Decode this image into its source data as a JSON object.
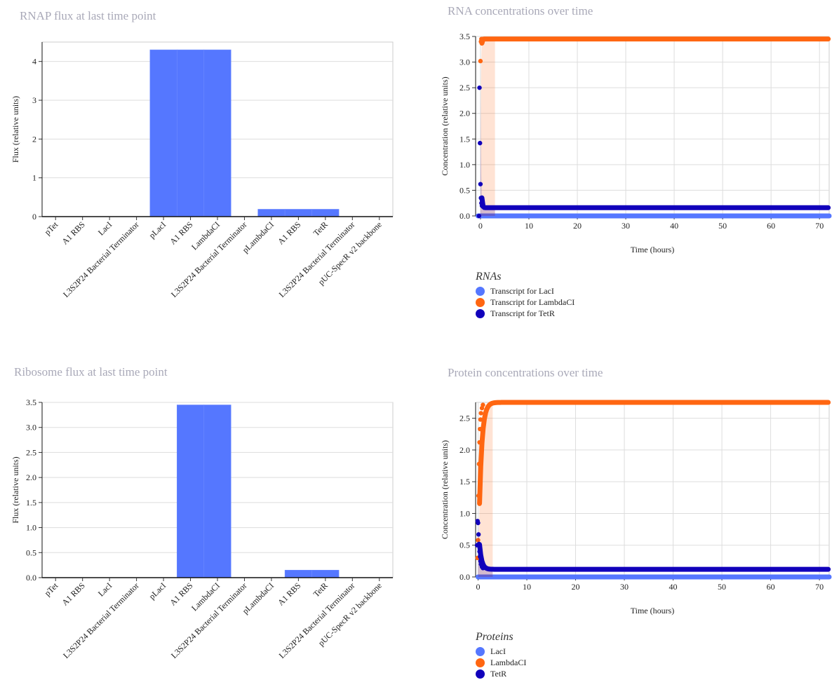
{
  "chart_data": [
    {
      "id": "rnap",
      "type": "bar",
      "title": "RNAP flux at last time point",
      "ylabel": "Flux (relative units)",
      "xlabel": "",
      "ylim": [
        0,
        4.5
      ],
      "yticks": [
        0,
        1,
        2,
        3,
        4
      ],
      "categories": [
        "pTet",
        "A1 RBS",
        "LacI",
        "L3S2P24 Bacterial Terminator",
        "pLacI",
        "A1 RBS",
        "LambdaCI",
        "L3S2P24 Bacterial Terminator",
        "pLambdaCI",
        "A1 RBS",
        "TetR",
        "L3S2P24 Bacterial Terminator",
        "pUC-SpecR v2 backbone"
      ],
      "values": [
        0,
        0,
        0,
        0,
        4.3,
        4.3,
        4.3,
        0,
        0.19,
        0.19,
        0.19,
        0,
        0
      ],
      "grid": true,
      "color": "#5577ff"
    },
    {
      "id": "ribosome",
      "type": "bar",
      "title": "Ribosome flux at last time point",
      "ylabel": "Flux (relative units)",
      "xlabel": "",
      "ylim": [
        0,
        3.5
      ],
      "yticks": [
        0.0,
        0.5,
        1.0,
        1.5,
        2.0,
        2.5,
        3.0,
        3.5
      ],
      "categories": [
        "pTet",
        "A1 RBS",
        "LacI",
        "L3S2P24 Bacterial Terminator",
        "pLacI",
        "A1 RBS",
        "LambdaCI",
        "L3S2P24 Bacterial Terminator",
        "pLambdaCI",
        "A1 RBS",
        "TetR",
        "L3S2P24 Bacterial Terminator",
        "pUC-SpecR v2 backbone"
      ],
      "values": [
        0,
        0,
        0,
        0,
        0,
        3.45,
        3.45,
        0,
        0,
        0.15,
        0.15,
        0,
        0
      ],
      "grid": true,
      "color": "#5577ff"
    },
    {
      "id": "rna",
      "type": "scatter",
      "title": "RNA concentrations over time",
      "xlabel": "Time (hours)",
      "ylabel": "Concentration (relative units)",
      "xlim": [
        -1,
        72
      ],
      "ylim": [
        0,
        3.5
      ],
      "xticks": [
        0,
        10,
        20,
        30,
        40,
        50,
        60,
        70
      ],
      "yticks": [
        0.0,
        0.5,
        1.0,
        1.5,
        2.0,
        2.5,
        3.0,
        3.5
      ],
      "grid": true,
      "legend_title": "RNAs",
      "legend_position": "bottom-left",
      "series": [
        {
          "name": "Transcript for LacI",
          "color": "#5577ff",
          "kind": "flat",
          "value": 0
        },
        {
          "name": "Transcript for LambdaCI",
          "color": "#ff6611",
          "kind": "rise",
          "start": 0,
          "end": 3.45,
          "tau": 0.08,
          "points": [
            [
              0,
              3.02
            ],
            [
              0.1,
              3.4
            ],
            [
              0.2,
              3.45
            ]
          ]
        },
        {
          "name": "Transcript for TetR",
          "color": "#1100bb",
          "kind": "spike",
          "start": 0,
          "peak": 2.5,
          "peak_t": 0,
          "end": 0.16,
          "tau": 0.12,
          "points": [
            [
              -0.3,
              0
            ],
            [
              -0.2,
              2.5
            ],
            [
              -0.1,
              1.42
            ],
            [
              0,
              0.62
            ],
            [
              0.1,
              0.35
            ],
            [
              0.2,
              0.25
            ],
            [
              0.3,
              0.2
            ]
          ]
        }
      ]
    },
    {
      "id": "protein",
      "type": "scatter",
      "title": "Protein concentrations over time",
      "xlabel": "Time (hours)",
      "ylabel": "Concentration (relative units)",
      "xlim": [
        -0.5,
        72
      ],
      "ylim": [
        0,
        2.75
      ],
      "xticks": [
        0,
        10,
        20,
        30,
        40,
        50,
        60,
        70
      ],
      "yticks": [
        0.0,
        0.5,
        1.0,
        1.5,
        2.0,
        2.5
      ],
      "grid": true,
      "legend_title": "Proteins",
      "legend_position": "bottom-left",
      "series": [
        {
          "name": "LacI",
          "color": "#5577ff",
          "kind": "flat",
          "value": 0
        },
        {
          "name": "LambdaCI",
          "color": "#ff6611",
          "kind": "rise",
          "start": 0,
          "end": 2.75,
          "tau": 0.55,
          "points": [
            [
              -0.1,
              0.3
            ],
            [
              0,
              0.58
            ],
            [
              0.1,
              1.28
            ],
            [
              0.2,
              1.78
            ],
            [
              0.3,
              2.12
            ],
            [
              0.4,
              2.33
            ],
            [
              0.5,
              2.48
            ],
            [
              0.6,
              2.58
            ],
            [
              0.8,
              2.66
            ],
            [
              1.0,
              2.71
            ]
          ]
        },
        {
          "name": "TetR",
          "color": "#1100bb",
          "kind": "spike",
          "start": 0,
          "peak": 0.88,
          "peak_t": 0,
          "end": 0.12,
          "tau": 0.45,
          "points": [
            [
              -0.2,
              0.5
            ],
            [
              -0.1,
              0.88
            ],
            [
              0,
              0.85
            ],
            [
              0.1,
              0.67
            ],
            [
              0.2,
              0.52
            ],
            [
              0.3,
              0.4
            ],
            [
              0.4,
              0.32
            ],
            [
              0.5,
              0.25
            ],
            [
              0.6,
              0.2
            ],
            [
              0.8,
              0.16
            ],
            [
              1.0,
              0.14
            ]
          ]
        }
      ]
    }
  ]
}
